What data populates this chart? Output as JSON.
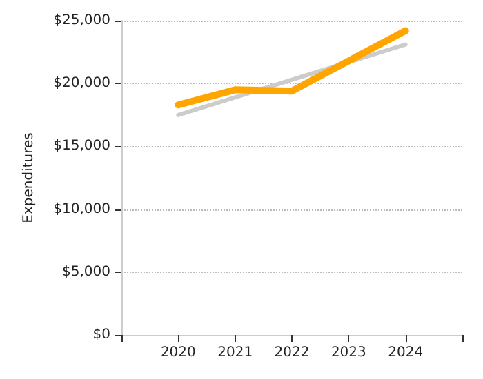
{
  "chart_data": {
    "type": "line",
    "ylabel": "Expenditures",
    "x": [
      2020,
      2021,
      2022,
      2023,
      2024
    ],
    "series": [
      {
        "type": "line",
        "color": "#cccccc",
        "x": [
          2020,
          2024
        ],
        "values": [
          17500,
          23100
        ]
      },
      {
        "color": "#ffa500",
        "values": [
          18300,
          19500,
          19400,
          21800,
          24200
        ]
      }
    ],
    "xlim": [
      2019,
      2025
    ],
    "xticks": [
      {
        "value": 2019,
        "label": null
      },
      2020,
      2021,
      2022,
      2023,
      2024,
      {
        "value": 2025,
        "label": null
      }
    ],
    "ylim": [
      0,
      25000
    ],
    "yticks": [
      {
        "value": 0,
        "label": "$0"
      },
      {
        "value": 5000,
        "label": "$5,000"
      },
      {
        "value": 10000,
        "label": "$10,000"
      },
      {
        "value": 15000,
        "label": "$15,000"
      },
      {
        "value": 20000,
        "label": "$20,000"
      },
      {
        "value": 25000,
        "label": "$25,000"
      }
    ],
    "grid": "y",
    "marker": "none",
    "line_style": "solid"
  }
}
